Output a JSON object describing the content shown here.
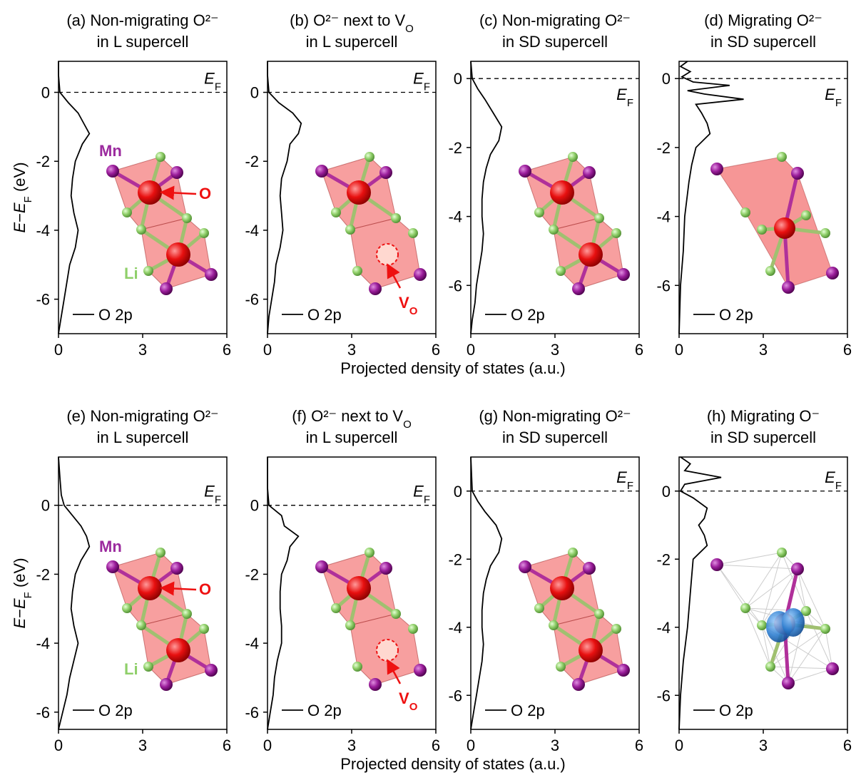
{
  "chart_data": [
    {
      "type": "line",
      "title": [
        [
          {
            "text": "(a) Non-migrating O²⁻"
          }
        ],
        [
          {
            "text": "in L supercell"
          }
        ]
      ],
      "ylabel": [
        {
          "text": "E",
          "italic": true
        },
        {
          "text": "−"
        },
        {
          "text": "E",
          "italic": true
        },
        {
          "text": "F",
          "sub": true
        },
        {
          "text": " (eV)"
        }
      ],
      "xlim": [
        0,
        6
      ],
      "xticks": [
        0,
        3,
        6
      ],
      "ylim": [
        -7,
        0.9
      ],
      "yticks": [
        -6,
        -4,
        -2,
        0
      ],
      "fermi": {
        "value": 0,
        "label": "E",
        "sub": "F"
      },
      "y": [
        0.9,
        0.5,
        0,
        -0.3,
        -0.6,
        -0.9,
        -1.2,
        -1.5,
        -2,
        -2.5,
        -3,
        -3.5,
        -4,
        -4.5,
        -5,
        -5.5,
        -6,
        -6.5,
        -7
      ],
      "series": [
        {
          "name": "O 2p",
          "color": "#000000",
          "values": [
            0,
            0,
            0.05,
            0.35,
            0.7,
            0.9,
            1.1,
            0.85,
            0.6,
            0.5,
            0.45,
            0.55,
            0.7,
            0.6,
            0.4,
            0.3,
            0.2,
            0.1,
            0
          ]
        }
      ],
      "inset": {
        "kind": "octahedra",
        "labels": [
          {
            "text": "Mn",
            "color": "#9b2a9e"
          },
          {
            "text": "O",
            "color": "#ee1111"
          },
          {
            "text": "Li",
            "color": "#8fcf6a"
          }
        ]
      }
    },
    {
      "type": "line",
      "title": [
        [
          {
            "text": "(b) O²⁻ next to V"
          },
          {
            "text": "O",
            "sub": true
          }
        ],
        [
          {
            "text": "in L supercell"
          }
        ]
      ],
      "xlim": [
        0,
        6
      ],
      "xticks": [
        0,
        3,
        6
      ],
      "ylim": [
        -7,
        0.9
      ],
      "yticks": [
        -6,
        -4,
        -2,
        0
      ],
      "fermi": {
        "value": 0,
        "label": "E",
        "sub": "F"
      },
      "xlabel": "Projected density of states (a.u.)",
      "y": [
        0.9,
        0.5,
        0,
        -0.3,
        -0.6,
        -0.9,
        -1.2,
        -1.5,
        -2,
        -2.5,
        -3,
        -3.5,
        -4,
        -4.5,
        -5,
        -5.5,
        -6,
        -6.5,
        -7
      ],
      "series": [
        {
          "name": "O 2p",
          "color": "#000000",
          "values": [
            0,
            0,
            0.05,
            0.4,
            0.9,
            1.2,
            1.1,
            0.8,
            0.7,
            0.5,
            0.45,
            0.5,
            0.55,
            0.45,
            0.3,
            0.25,
            0.15,
            0.05,
            0
          ]
        }
      ],
      "inset": {
        "kind": "vacancy",
        "labels": [
          {
            "text": "V",
            "sub": "O",
            "color": "#ee1111"
          }
        ]
      }
    },
    {
      "type": "line",
      "title": [
        [
          {
            "text": "(c) Non-migrating O²⁻"
          }
        ],
        [
          {
            "text": "in SD supercell"
          }
        ]
      ],
      "xlim": [
        0,
        6
      ],
      "xticks": [
        0,
        3,
        6
      ],
      "ylim": [
        -7.4,
        0.5
      ],
      "yticks": [
        -6,
        -4,
        -2,
        0
      ],
      "fermi": {
        "value": 0,
        "label": "E",
        "sub": "F"
      },
      "y": [
        0.5,
        0,
        -0.3,
        -0.6,
        -1,
        -1.4,
        -1.8,
        -2.2,
        -2.6,
        -3,
        -3.5,
        -4,
        -4.5,
        -5,
        -5.5,
        -6,
        -6.5,
        -7,
        -7.4
      ],
      "series": [
        {
          "name": "O 2p",
          "color": "#000000",
          "values": [
            0,
            0.05,
            0.25,
            0.5,
            0.8,
            1.1,
            1.0,
            0.7,
            0.55,
            0.45,
            0.4,
            0.4,
            0.45,
            0.4,
            0.3,
            0.2,
            0.15,
            0.05,
            0
          ]
        }
      ],
      "inset": {
        "kind": "octahedra",
        "labels": []
      }
    },
    {
      "type": "line",
      "title": [
        [
          {
            "text": "(d) Migrating O²⁻"
          }
        ],
        [
          {
            "text": "in SD supercell"
          }
        ]
      ],
      "xlim": [
        0,
        6
      ],
      "xticks": [
        0,
        3,
        6
      ],
      "ylim": [
        -7.4,
        0.5
      ],
      "yticks": [
        -6,
        -4,
        -2,
        0
      ],
      "fermi": {
        "value": 0,
        "label": "E",
        "sub": "F"
      },
      "y": [
        0.5,
        0.35,
        0.2,
        0.05,
        -0.1,
        -0.2,
        -0.35,
        -0.45,
        -0.6,
        -0.75,
        -1,
        -1.3,
        -1.6,
        -2,
        -2.5,
        -3,
        -4,
        -5,
        -6,
        -7.4
      ],
      "series": [
        {
          "name": "O 2p",
          "color": "#000000",
          "values": [
            0.3,
            0.05,
            0.4,
            0.1,
            0.5,
            1.8,
            0.3,
            0.9,
            2.3,
            0.6,
            0.8,
            1.0,
            1.1,
            0.6,
            0.45,
            0.35,
            0.2,
            0.15,
            0.05,
            0
          ]
        }
      ],
      "inset": {
        "kind": "migrating",
        "labels": []
      }
    },
    {
      "type": "line",
      "title": [
        [
          {
            "text": "(e) Non-migrating O²⁻"
          }
        ],
        [
          {
            "text": "in L supercell"
          }
        ]
      ],
      "ylabel": [
        {
          "text": "E",
          "italic": true
        },
        {
          "text": "−"
        },
        {
          "text": "E",
          "italic": true
        },
        {
          "text": "F",
          "sub": true
        },
        {
          "text": " (eV)"
        }
      ],
      "xlim": [
        0,
        6
      ],
      "xticks": [
        0,
        3,
        6
      ],
      "ylim": [
        -6.5,
        1.4
      ],
      "yticks": [
        -6,
        -4,
        -2,
        0
      ],
      "fermi": {
        "value": 0,
        "label": "E",
        "sub": "F"
      },
      "y": [
        1.4,
        0.8,
        0.3,
        0,
        -0.3,
        -0.6,
        -0.9,
        -1.2,
        -1.6,
        -2,
        -2.5,
        -3,
        -3.5,
        -4,
        -4.5,
        -5,
        -5.5,
        -6,
        -6.5
      ],
      "series": [
        {
          "name": "O 2p",
          "color": "#000000",
          "values": [
            0,
            0.05,
            0.1,
            0.2,
            0.5,
            0.8,
            1.0,
            1.1,
            0.8,
            0.6,
            0.5,
            0.45,
            0.55,
            0.7,
            0.55,
            0.4,
            0.3,
            0.15,
            0
          ]
        }
      ],
      "inset": {
        "kind": "octahedra",
        "labels": [
          {
            "text": "Mn",
            "color": "#9b2a9e"
          },
          {
            "text": "O",
            "color": "#ee1111"
          },
          {
            "text": "Li",
            "color": "#8fcf6a"
          }
        ]
      }
    },
    {
      "type": "line",
      "title": [
        [
          {
            "text": "(f) O²⁻ next to V"
          },
          {
            "text": "O",
            "sub": true
          }
        ],
        [
          {
            "text": "in L supercell"
          }
        ]
      ],
      "xlim": [
        0,
        6
      ],
      "xticks": [
        0,
        3,
        6
      ],
      "ylim": [
        -6.5,
        1.4
      ],
      "yticks": [
        -6,
        -4,
        -2,
        0
      ],
      "fermi": {
        "value": 0,
        "label": "E",
        "sub": "F"
      },
      "xlabel": "Projected density of states (a.u.)",
      "y": [
        1.4,
        0.5,
        0,
        -0.3,
        -0.6,
        -0.9,
        -1.2,
        -1.6,
        -2,
        -2.5,
        -3,
        -3.5,
        -4,
        -4.5,
        -5,
        -5.5,
        -6,
        -6.5
      ],
      "series": [
        {
          "name": "O 2p",
          "color": "#000000",
          "values": [
            0,
            0,
            0.05,
            0.5,
            0.6,
            1.1,
            0.8,
            0.7,
            0.5,
            0.45,
            0.45,
            0.5,
            0.5,
            0.35,
            0.25,
            0.2,
            0.1,
            0
          ]
        }
      ],
      "inset": {
        "kind": "vacancy",
        "labels": [
          {
            "text": "V",
            "sub": "O",
            "color": "#ee1111"
          }
        ]
      }
    },
    {
      "type": "line",
      "title": [
        [
          {
            "text": "(g) Non-migrating O²⁻"
          }
        ],
        [
          {
            "text": "in SD supercell"
          }
        ]
      ],
      "xlim": [
        0,
        6
      ],
      "xticks": [
        0,
        3,
        6
      ],
      "ylim": [
        -7,
        1
      ],
      "yticks": [
        -6,
        -4,
        -2,
        0
      ],
      "fermi": {
        "value": 0,
        "label": "E",
        "sub": "F"
      },
      "y": [
        1,
        0,
        -0.3,
        -0.6,
        -1,
        -1.4,
        -1.8,
        -2.2,
        -2.6,
        -3,
        -3.5,
        -4,
        -4.5,
        -5,
        -5.5,
        -6,
        -6.5,
        -7
      ],
      "series": [
        {
          "name": "O 2p",
          "color": "#000000",
          "values": [
            0,
            0.05,
            0.25,
            0.5,
            0.9,
            1.1,
            1.0,
            0.7,
            0.55,
            0.45,
            0.4,
            0.4,
            0.45,
            0.4,
            0.3,
            0.2,
            0.1,
            0
          ]
        }
      ],
      "inset": {
        "kind": "octahedra",
        "labels": []
      }
    },
    {
      "type": "line",
      "title": [
        [
          {
            "text": "(h) Migrating O⁻"
          }
        ],
        [
          {
            "text": "in SD supercell"
          }
        ]
      ],
      "xlim": [
        0,
        6
      ],
      "xticks": [
        0,
        3,
        6
      ],
      "ylim": [
        -7,
        1
      ],
      "yticks": [
        -6,
        -4,
        -2,
        0
      ],
      "fermi": {
        "value": 0,
        "label": "E",
        "sub": "F"
      },
      "y": [
        1,
        0.8,
        0.6,
        0.4,
        0.2,
        0,
        -0.2,
        -0.5,
        -0.8,
        -1,
        -1.3,
        -1.6,
        -2,
        -2.5,
        -3,
        -4,
        -5,
        -6,
        -7
      ],
      "series": [
        {
          "name": "O 2p",
          "color": "#000000",
          "values": [
            0.05,
            0.4,
            0.2,
            1.5,
            0.2,
            0.05,
            0.5,
            1.0,
            0.9,
            0.7,
            0.9,
            1.0,
            0.5,
            0.45,
            0.4,
            0.3,
            0.15,
            0.05,
            0
          ]
        }
      ],
      "inset": {
        "kind": "isosurface",
        "labels": []
      }
    }
  ]
}
